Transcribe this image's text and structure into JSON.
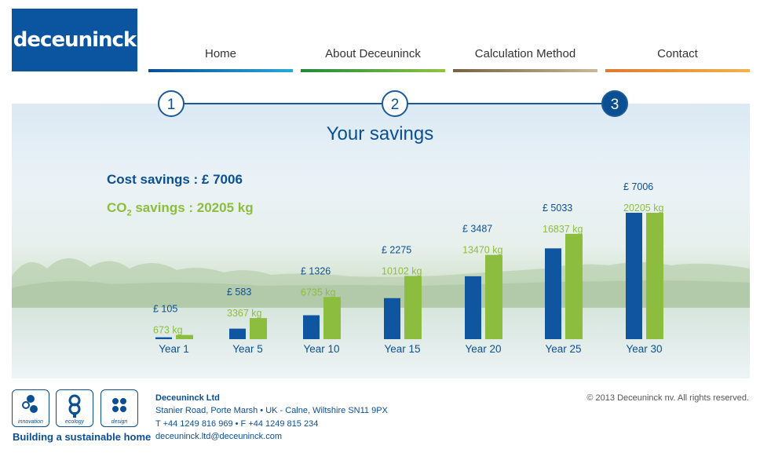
{
  "brand": {
    "logo_text": "deceuninck"
  },
  "nav": [
    {
      "label": "Home"
    },
    {
      "label": "About Deceuninck"
    },
    {
      "label": "Calculation Method"
    },
    {
      "label": "Contact"
    }
  ],
  "steps": [
    "1",
    "2",
    "3"
  ],
  "active_step": 3,
  "summary": {
    "cost_prefix": "Cost savings : ",
    "cost_value": "£ 7006",
    "co2_prefix": "CO",
    "co2_sub": "2",
    "co2_suffix": " savings : ",
    "co2_value": "20205 kg"
  },
  "colors": {
    "primary": "#0b4f93",
    "cost_bar": "#0f55a0",
    "co2_bar": "#8cbd3f",
    "step_line": "#1c5a99"
  },
  "chart_data": {
    "type": "bar",
    "title": "Your savings",
    "categories": [
      "Year 1",
      "Year 5",
      "Year 10",
      "Year 15",
      "Year 20",
      "Year 25",
      "Year 30"
    ],
    "series": [
      {
        "name": "Cost savings",
        "unit": "£",
        "values": [
          105,
          583,
          1326,
          2275,
          3487,
          5033,
          7006
        ],
        "labels": [
          "£ 105",
          "£ 583",
          "£ 1326",
          "£ 2275",
          "£ 3487",
          "£ 5033",
          "£ 7006"
        ]
      },
      {
        "name": "CO2 savings",
        "unit": "kg",
        "values": [
          673,
          3367,
          6735,
          10102,
          13470,
          16837,
          20205
        ],
        "labels": [
          "673 kg",
          "3367 kg",
          "6735 kg",
          "10102 kg",
          "13470 kg",
          "16837 kg",
          "20205 kg"
        ]
      }
    ],
    "xlabel": "",
    "ylabel": "",
    "grid": false
  },
  "footer": {
    "icons": [
      {
        "name": "innovation-icon",
        "caption": "innovation"
      },
      {
        "name": "ecology-icon",
        "caption": "ecology"
      },
      {
        "name": "design-icon",
        "caption": "design"
      }
    ],
    "tagline": "Building a sustainable home",
    "company": "Deceuninck Ltd",
    "address": "Stanier Road, Porte Marsh • UK - Calne, Wiltshire SN11 9PX",
    "phone": "T +44 1249 816 969 • F +44 1249 815 234",
    "email": "deceuninck.ltd@deceuninck.com",
    "copyright": "© 2013  Deceuninck nv. All rights reserved."
  }
}
